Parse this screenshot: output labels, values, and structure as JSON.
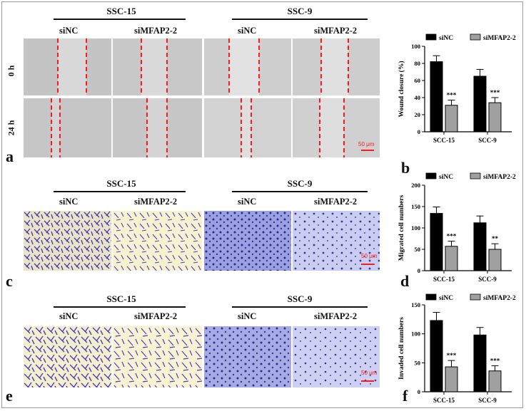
{
  "panel_letters": {
    "a": "a",
    "b": "b",
    "c": "c",
    "d": "d",
    "e": "e",
    "f": "f"
  },
  "figure_rows": [
    {
      "group_titles": [
        "SSC-15",
        "SSC-9"
      ],
      "columns": [
        "siNC",
        "siMFAP2-2",
        "siNC",
        "siMFAP2-2"
      ],
      "time_labels": [
        "0 h",
        "24 h"
      ],
      "scale_bar": "50 μm"
    },
    {
      "group_titles": [
        "SSC-15",
        "SSC-9"
      ],
      "columns": [
        "siNC",
        "siMFAP2-2",
        "siNC",
        "siMFAP2-2"
      ],
      "scale_bar": "50 μm"
    },
    {
      "group_titles": [
        "SSC-15",
        "SSC-9"
      ],
      "columns": [
        "siNC",
        "siMFAP2-2",
        "siNC",
        "siMFAP2-2"
      ],
      "scale_bar": "50 μm"
    }
  ],
  "colors": {
    "siNC": "#000000",
    "siMFAP2": "#a0a0a0",
    "scratch_line": "#ff1a1a",
    "crystal_violet": "#4a3fc0",
    "yellow_bg": "#fbf6cf",
    "blue_bg": "#c9cdef"
  },
  "chart_data": [
    {
      "type": "bar",
      "panel": "b",
      "ylabel": "Wound closure (%)",
      "ylim": [
        0,
        100
      ],
      "yticks": [
        0,
        20,
        40,
        60,
        80,
        100
      ],
      "categories": [
        "SCC-15",
        "SCC-9"
      ],
      "series": [
        {
          "name": "siNC",
          "values": [
            82,
            65
          ],
          "errors": [
            7,
            8
          ]
        },
        {
          "name": "siMFAP2-2",
          "values": [
            31,
            34
          ],
          "errors": [
            6,
            6
          ]
        }
      ],
      "annotations": [
        {
          "category": 0,
          "series": 1,
          "text": "***"
        },
        {
          "category": 1,
          "series": 1,
          "text": "***"
        }
      ],
      "legend": "top"
    },
    {
      "type": "bar",
      "panel": "d",
      "ylabel": "Migrated cell numbers",
      "ylim": [
        0,
        200
      ],
      "yticks": [
        0,
        50,
        100,
        150,
        200
      ],
      "categories": [
        "SCC-15",
        "SCC-9"
      ],
      "series": [
        {
          "name": "siNC",
          "values": [
            134,
            112
          ],
          "errors": [
            15,
            16
          ]
        },
        {
          "name": "siMFAP2-2",
          "values": [
            57,
            50
          ],
          "errors": [
            12,
            13
          ]
        }
      ],
      "annotations": [
        {
          "category": 0,
          "series": 1,
          "text": "***"
        },
        {
          "category": 1,
          "series": 1,
          "text": "**"
        }
      ],
      "legend": "top"
    },
    {
      "type": "bar",
      "panel": "f",
      "ylabel": "Invaded cell numbers",
      "ylim": [
        0,
        150
      ],
      "yticks": [
        0,
        50,
        100,
        150
      ],
      "categories": [
        "SCC-15",
        "SCC-9"
      ],
      "series": [
        {
          "name": "siNC",
          "values": [
            123,
            98
          ],
          "errors": [
            14,
            13
          ]
        },
        {
          "name": "siMFAP2-2",
          "values": [
            43,
            36
          ],
          "errors": [
            11,
            9
          ]
        }
      ],
      "annotations": [
        {
          "category": 0,
          "series": 1,
          "text": "***"
        },
        {
          "category": 1,
          "series": 1,
          "text": "***"
        }
      ],
      "legend": "top"
    }
  ]
}
